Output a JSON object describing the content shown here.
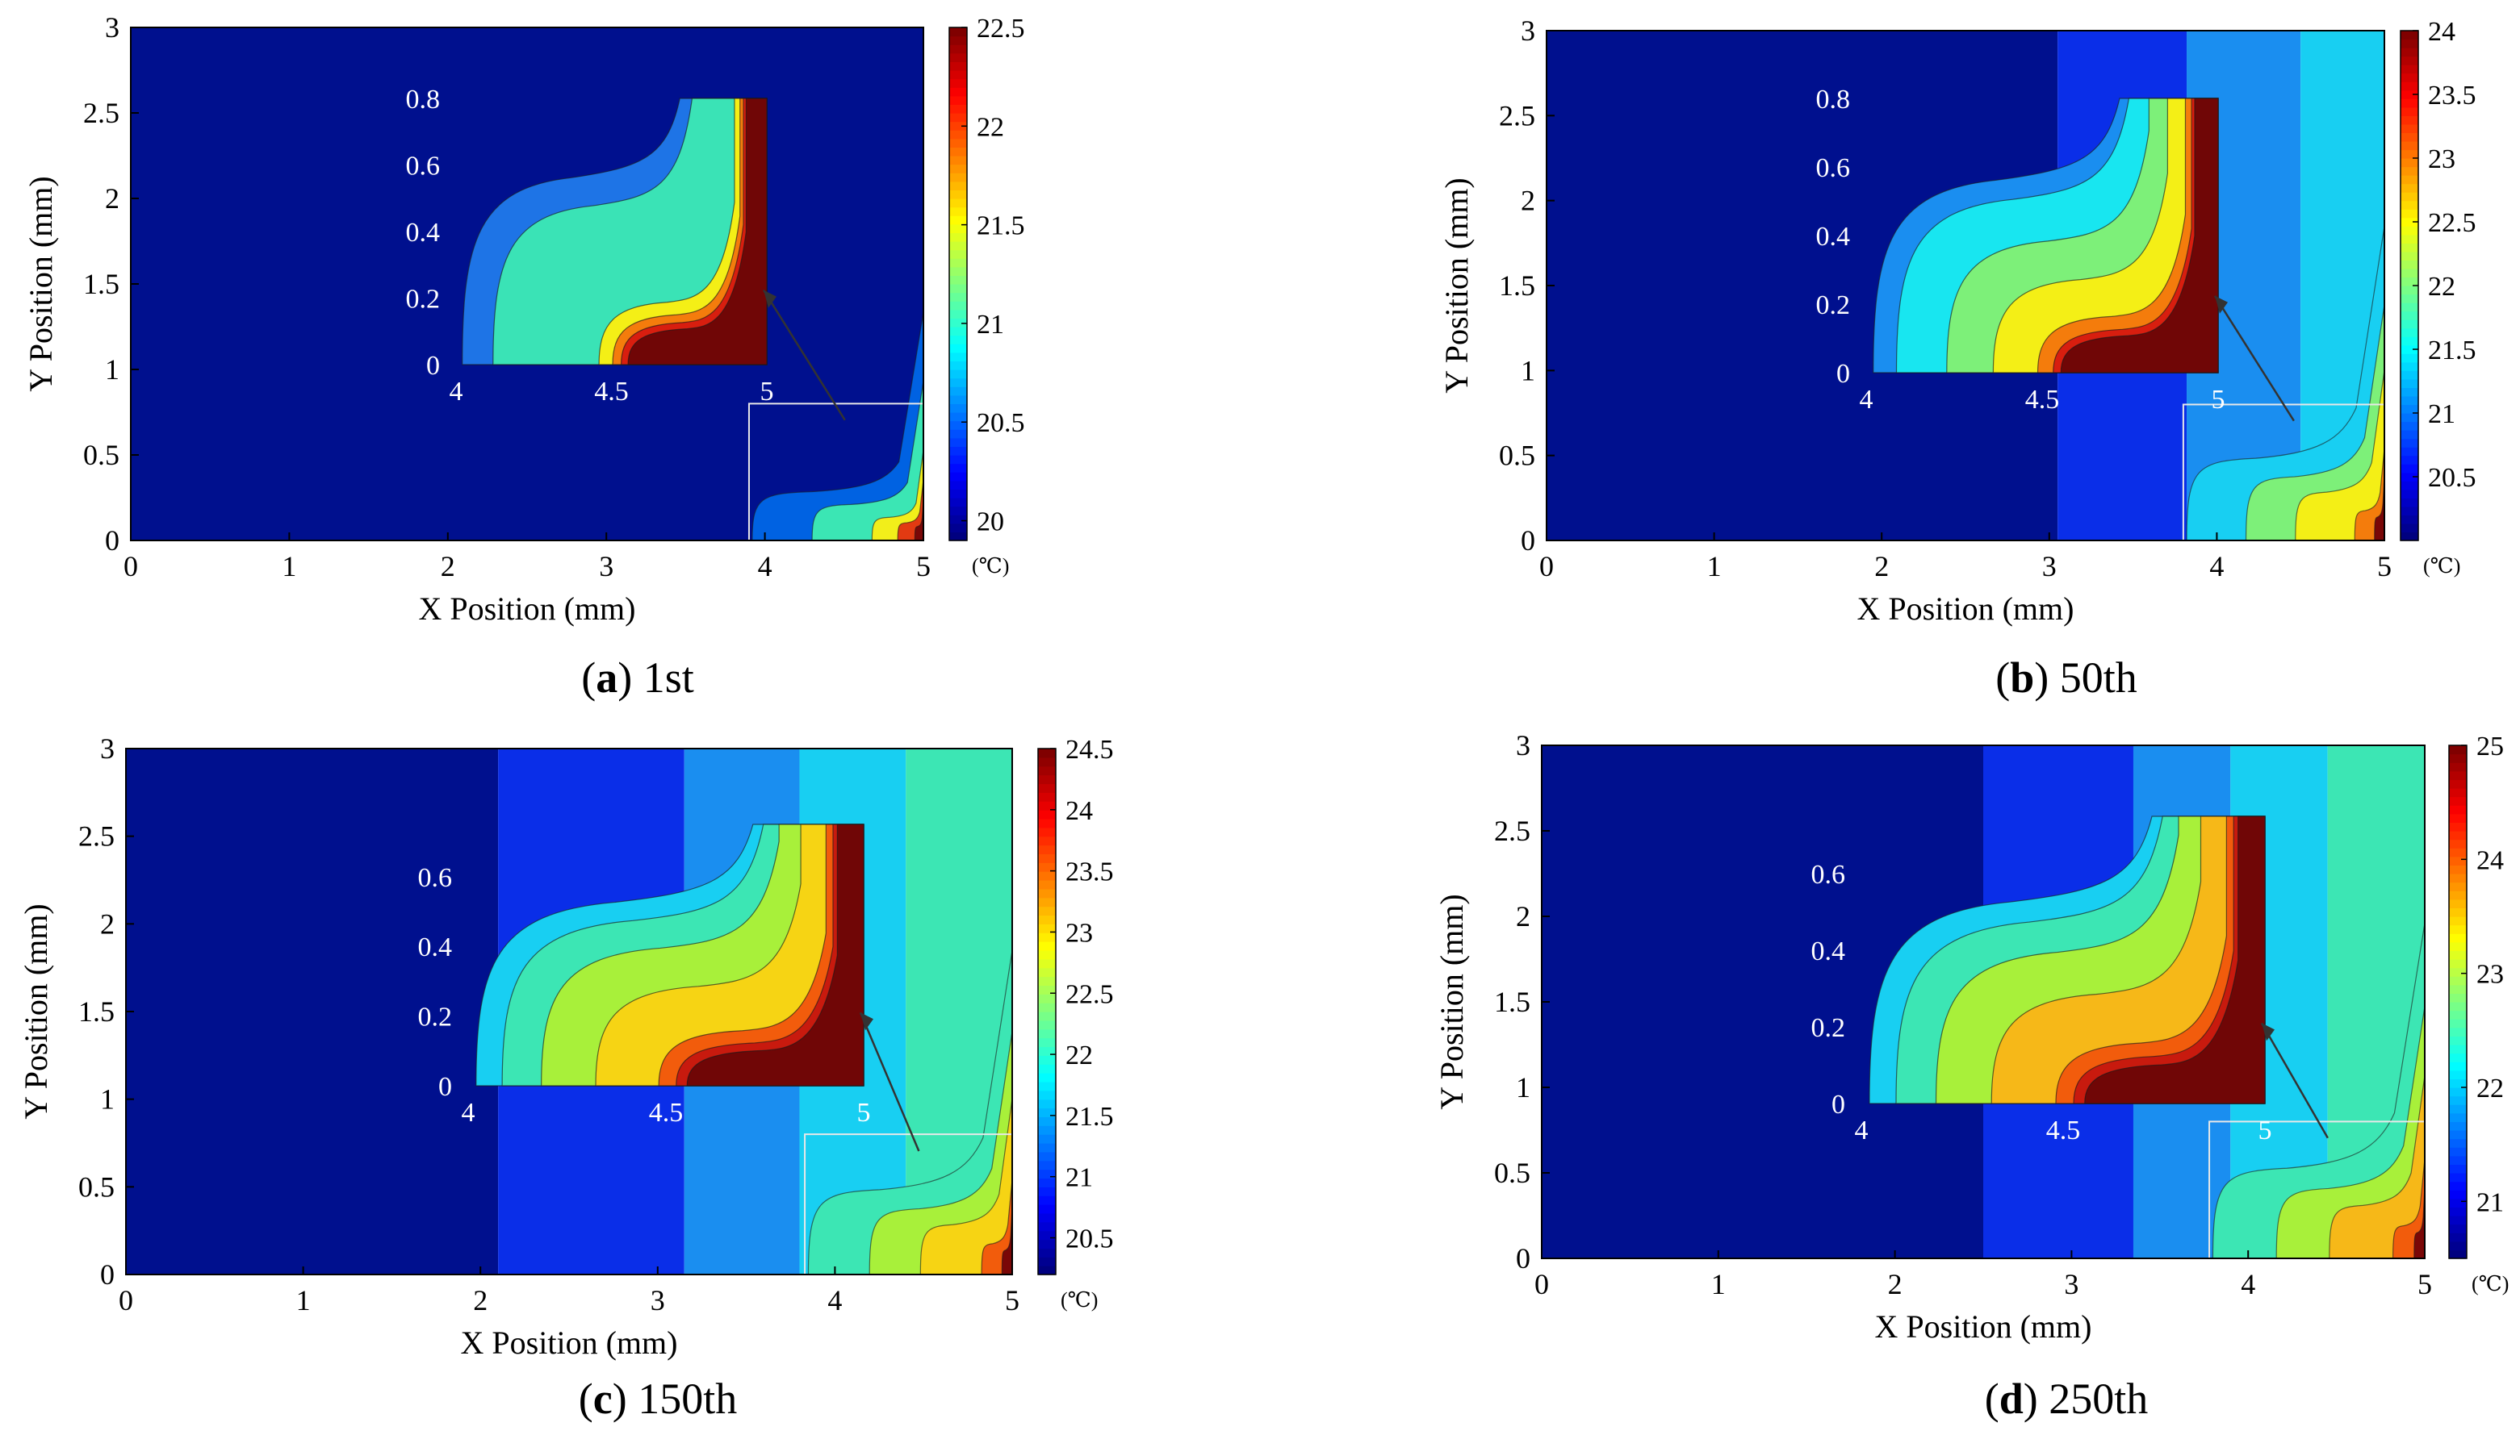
{
  "figure": {
    "unit_label": "(℃)",
    "axis_color": "#000000"
  },
  "chart_data": [
    {
      "type": "heatmap",
      "panel_letter": "a",
      "title": "1st",
      "xlabel": "X Position (mm)",
      "ylabel": "Y Position (mm)",
      "xlim": [
        0,
        5
      ],
      "ylim": [
        0,
        3
      ],
      "xticks": [
        "0",
        "1",
        "2",
        "3",
        "4",
        "5"
      ],
      "yticks": [
        "0",
        "0.5",
        "1",
        "1.5",
        "2",
        "2.5",
        "3"
      ],
      "colorbar": {
        "min": 19.9,
        "max": 22.5,
        "ticks": [
          "20",
          "20.5",
          "21",
          "21.5",
          "22",
          "22.5"
        ],
        "tick_values": [
          20,
          20.5,
          21,
          21.5,
          22,
          22.5
        ]
      },
      "background_bands": [
        {
          "x0": 0,
          "x1": 5,
          "color": "#00108e"
        }
      ],
      "hot_zone": {
        "base_x": 3.92,
        "shoulder_y": 0.46,
        "levels": [
          {
            "offset": 0.0,
            "color": "#0062e2"
          },
          {
            "offset": 0.35,
            "color": "#3be6b4"
          },
          {
            "offset": 0.7,
            "color": "#f2ee1a"
          },
          {
            "offset": 0.85,
            "color": "#e23a12"
          },
          {
            "offset": 0.95,
            "color": "#7a0707"
          }
        ]
      },
      "inset": {
        "xlim": [
          4,
          5
        ],
        "ylim": [
          0,
          0.8
        ],
        "xticks": [
          "4",
          "4.5",
          "5"
        ],
        "yticks": [
          "0",
          "0.2",
          "0.4",
          "0.6",
          "0.8"
        ],
        "levels": [
          {
            "offset": 0.0,
            "color": "#1e74e6"
          },
          {
            "offset": 0.18,
            "color": "#3ae3b6"
          },
          {
            "offset": 0.8,
            "color": "#f4ef16"
          },
          {
            "offset": 0.88,
            "color": "#f47c0c"
          },
          {
            "offset": 0.93,
            "color": "#d81e0f"
          },
          {
            "offset": 0.97,
            "color": "#700606"
          }
        ]
      }
    },
    {
      "type": "heatmap",
      "panel_letter": "b",
      "title": "50th",
      "xlabel": "X Position (mm)",
      "ylabel": "Y Position (mm)",
      "xlim": [
        0,
        5
      ],
      "ylim": [
        0,
        3
      ],
      "xticks": [
        "0",
        "1",
        "2",
        "3",
        "4",
        "5"
      ],
      "yticks": [
        "0",
        "0.5",
        "1",
        "1.5",
        "2",
        "2.5",
        "3"
      ],
      "colorbar": {
        "min": 20.0,
        "max": 24.0,
        "ticks": [
          "20.5",
          "21",
          "21.5",
          "22",
          "22.5",
          "23",
          "23.5",
          "24"
        ],
        "tick_values": [
          20.5,
          21,
          21.5,
          22,
          22.5,
          23,
          23.5,
          24
        ]
      },
      "background_bands": [
        {
          "x0": 0,
          "x1": 3.05,
          "color": "#00108e"
        },
        {
          "x0": 3.05,
          "x1": 3.82,
          "color": "#0a2ee8"
        },
        {
          "x0": 3.82,
          "x1": 4.5,
          "color": "#1a8ef0"
        },
        {
          "x0": 4.5,
          "x1": 5,
          "color": "#18cff2"
        }
      ],
      "hot_zone": {
        "base_x": 3.82,
        "shoulder_y": 0.78,
        "levels": [
          {
            "offset": 0.0,
            "color": "#18cff2"
          },
          {
            "offset": 0.3,
            "color": "#7df079"
          },
          {
            "offset": 0.55,
            "color": "#f4ef16"
          },
          {
            "offset": 0.85,
            "color": "#f47c0c"
          },
          {
            "offset": 0.95,
            "color": "#7a0707"
          }
        ]
      },
      "inset": {
        "xlim": [
          4,
          5
        ],
        "ylim": [
          0,
          0.8
        ],
        "xticks": [
          "4",
          "4.5",
          "5"
        ],
        "yticks": [
          "0",
          "0.2",
          "0.4",
          "0.6",
          "0.8"
        ],
        "levels": [
          {
            "offset": 0.0,
            "color": "#1a8ef0"
          },
          {
            "offset": 0.12,
            "color": "#18e6f0"
          },
          {
            "offset": 0.38,
            "color": "#7df079"
          },
          {
            "offset": 0.62,
            "color": "#f4ef16"
          },
          {
            "offset": 0.85,
            "color": "#f47c0c"
          },
          {
            "offset": 0.93,
            "color": "#d81e0f"
          },
          {
            "offset": 0.97,
            "color": "#700606"
          }
        ]
      }
    },
    {
      "type": "heatmap",
      "panel_letter": "c",
      "title": "150th",
      "xlabel": "X Position (mm)",
      "ylabel": "Y Position (mm)",
      "xlim": [
        0,
        5
      ],
      "ylim": [
        0,
        3
      ],
      "xticks": [
        "0",
        "1",
        "2",
        "3",
        "4",
        "5"
      ],
      "yticks": [
        "0",
        "0.5",
        "1",
        "1.5",
        "2",
        "2.5",
        "3"
      ],
      "colorbar": {
        "min": 20.2,
        "max": 24.5,
        "ticks": [
          "20.5",
          "21",
          "21.5",
          "22",
          "22.5",
          "23",
          "23.5",
          "24",
          "24.5"
        ],
        "tick_values": [
          20.5,
          21,
          21.5,
          22,
          22.5,
          23,
          23.5,
          24,
          24.5
        ]
      },
      "background_bands": [
        {
          "x0": 0,
          "x1": 2.1,
          "color": "#00108e"
        },
        {
          "x0": 2.1,
          "x1": 3.15,
          "color": "#0a2ee8"
        },
        {
          "x0": 3.15,
          "x1": 3.8,
          "color": "#1a8ef0"
        },
        {
          "x0": 3.8,
          "x1": 4.4,
          "color": "#18cff2"
        },
        {
          "x0": 4.4,
          "x1": 5,
          "color": "#3ce6b4"
        }
      ],
      "hot_zone": {
        "base_x": 3.85,
        "shoulder_y": 0.78,
        "levels": [
          {
            "offset": 0.0,
            "color": "#3ce6b4"
          },
          {
            "offset": 0.3,
            "color": "#a8f03a"
          },
          {
            "offset": 0.55,
            "color": "#f6d414"
          },
          {
            "offset": 0.85,
            "color": "#f25c0c"
          },
          {
            "offset": 0.95,
            "color": "#7a0707"
          }
        ]
      },
      "inset": {
        "xlim": [
          4,
          5
        ],
        "ylim": [
          0,
          0.75
        ],
        "xticks": [
          "4",
          "4.5",
          "5"
        ],
        "yticks": [
          "0",
          "0.2",
          "0.4",
          "0.6"
        ],
        "levels": [
          {
            "offset": 0.0,
            "color": "#18cff2"
          },
          {
            "offset": 0.12,
            "color": "#3ce6b4"
          },
          {
            "offset": 0.3,
            "color": "#a8f03a"
          },
          {
            "offset": 0.55,
            "color": "#f6d414"
          },
          {
            "offset": 0.84,
            "color": "#f25c0c"
          },
          {
            "offset": 0.92,
            "color": "#c81a0e"
          },
          {
            "offset": 0.97,
            "color": "#700606"
          }
        ]
      }
    },
    {
      "type": "heatmap",
      "panel_letter": "d",
      "title": "250th",
      "xlabel": "X Position (mm)",
      "ylabel": "Y Position (mm)",
      "xlim": [
        0,
        5
      ],
      "ylim": [
        0,
        3
      ],
      "xticks": [
        "0",
        "1",
        "2",
        "3",
        "4",
        "5"
      ],
      "yticks": [
        "0",
        "0.5",
        "1",
        "1.5",
        "2",
        "2.5",
        "3"
      ],
      "colorbar": {
        "min": 20.5,
        "max": 25.0,
        "ticks": [
          "21",
          "22",
          "23",
          "24",
          "25"
        ],
        "tick_values": [
          21,
          22,
          23,
          24,
          25
        ]
      },
      "background_bands": [
        {
          "x0": 0,
          "x1": 2.5,
          "color": "#00108e"
        },
        {
          "x0": 2.5,
          "x1": 3.35,
          "color": "#0a2ee8"
        },
        {
          "x0": 3.35,
          "x1": 3.9,
          "color": "#1a8ef0"
        },
        {
          "x0": 3.9,
          "x1": 4.45,
          "color": "#18cff2"
        },
        {
          "x0": 4.45,
          "x1": 5,
          "color": "#3ce6b4"
        }
      ],
      "hot_zone": {
        "base_x": 3.8,
        "shoulder_y": 0.85,
        "levels": [
          {
            "offset": 0.0,
            "color": "#3ce6b4"
          },
          {
            "offset": 0.3,
            "color": "#a8f03a"
          },
          {
            "offset": 0.55,
            "color": "#f6b818"
          },
          {
            "offset": 0.85,
            "color": "#f25c0c"
          },
          {
            "offset": 0.95,
            "color": "#7a0707"
          }
        ]
      },
      "inset": {
        "xlim": [
          4,
          5
        ],
        "ylim": [
          0,
          0.75
        ],
        "xticks": [
          "4",
          "4.5",
          "5"
        ],
        "yticks": [
          "0",
          "0.2",
          "0.4",
          "0.6"
        ],
        "levels": [
          {
            "offset": 0.0,
            "color": "#18cff2"
          },
          {
            "offset": 0.12,
            "color": "#3ce6b4"
          },
          {
            "offset": 0.3,
            "color": "#a8f03a"
          },
          {
            "offset": 0.55,
            "color": "#f6b818"
          },
          {
            "offset": 0.84,
            "color": "#f25c0c"
          },
          {
            "offset": 0.92,
            "color": "#c81a0e"
          },
          {
            "offset": 0.97,
            "color": "#700606"
          }
        ]
      }
    }
  ]
}
